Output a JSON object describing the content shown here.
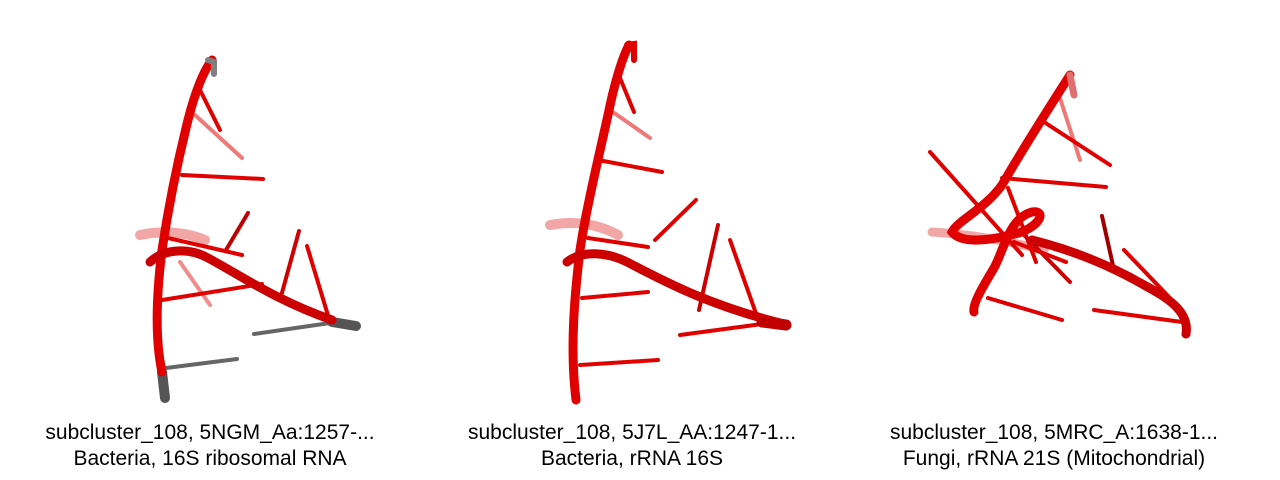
{
  "figure": {
    "panels": [
      {
        "caption_line1": "subcluster_108, 5NGM_Aa:1257-...",
        "caption_line2": "Bacteria, 16S ribosomal RNA",
        "structure_color": "#e00000",
        "unresolved_color": "#555555"
      },
      {
        "caption_line1": "subcluster_108, 5J7L_AA:1247-1...",
        "caption_line2": "Bacteria, rRNA 16S",
        "structure_color": "#e00000"
      },
      {
        "caption_line1": "subcluster_108, 5MRC_A:1638-1...",
        "caption_line2": "Fungi, rRNA 21S (Mitochondrial)",
        "structure_color": "#e00000"
      }
    ]
  }
}
